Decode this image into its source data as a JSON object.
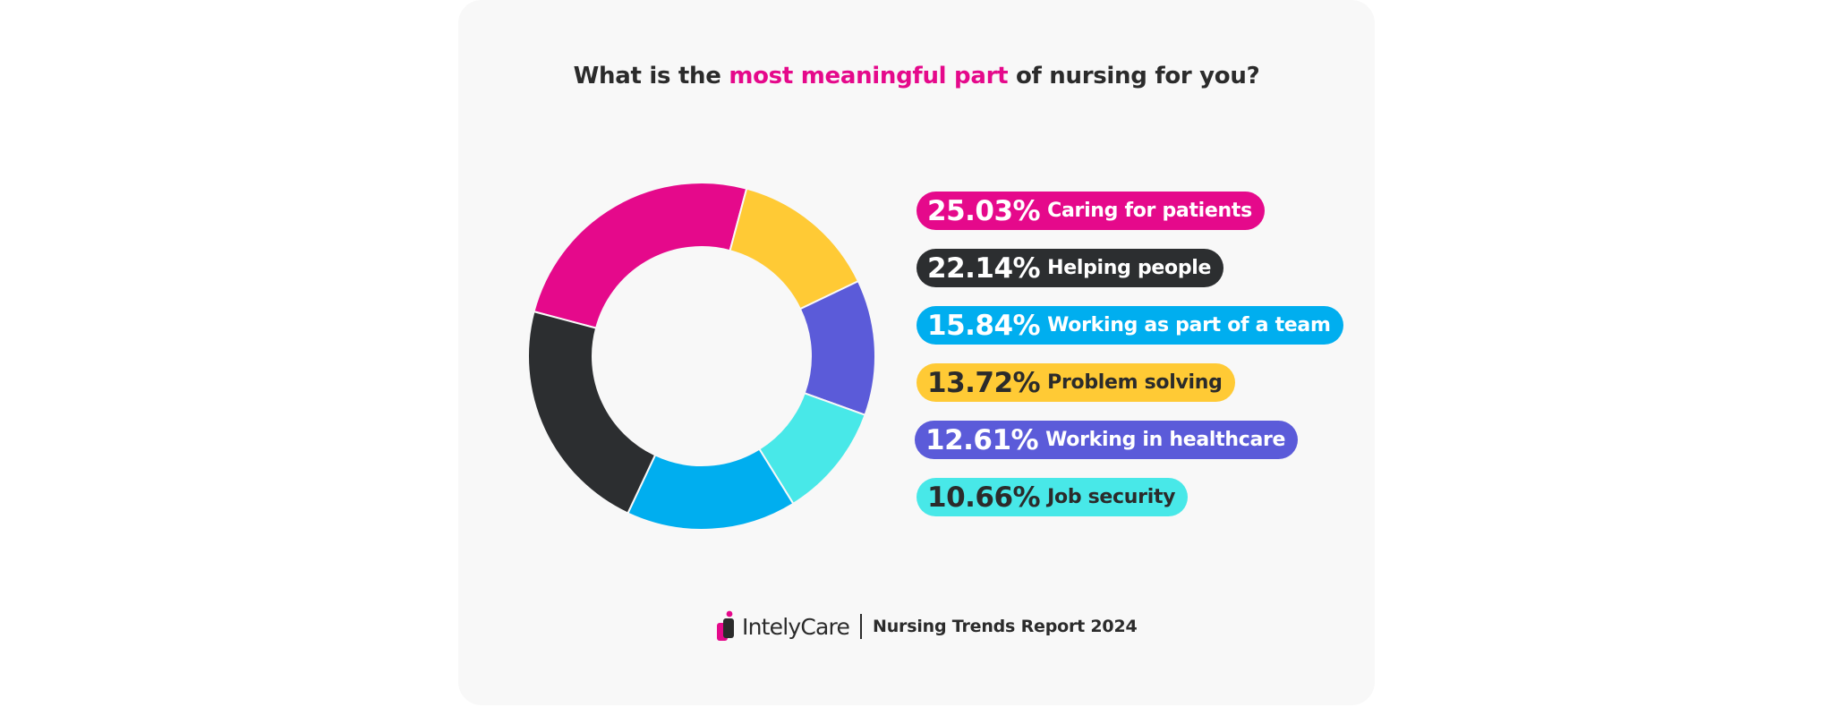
{
  "title": {
    "before": "What is the ",
    "highlight": "most meaningful part",
    "after": " of nursing for you?"
  },
  "chart_data": {
    "type": "pie",
    "donut": true,
    "slices": [
      {
        "label": "Caring for patients",
        "value": 25.03,
        "value_text": "25.03%",
        "color": "#e5098b",
        "text_color": "#ffffff"
      },
      {
        "label": "Helping people",
        "value": 22.14,
        "value_text": "22.14%",
        "color": "#2c2e30",
        "text_color": "#ffffff"
      },
      {
        "label": "Working as part of a team",
        "value": 15.84,
        "value_text": "15.84%",
        "color": "#00aeef",
        "text_color": "#ffffff"
      },
      {
        "label": "Problem solving",
        "value": 13.72,
        "value_text": "13.72%",
        "color": "#ffca35",
        "text_color": "#2b2b2b"
      },
      {
        "label": "Working in healthcare",
        "value": 12.61,
        "value_text": "12.61%",
        "color": "#5b5bd9",
        "text_color": "#ffffff"
      },
      {
        "label": "Job security",
        "value": 10.66,
        "value_text": "10.66%",
        "color": "#48e8e8",
        "text_color": "#2b2b2b"
      }
    ],
    "ring_order": [
      "Caring for patients",
      "Problem solving",
      "Working in healthcare",
      "Job security",
      "Working as part of a team",
      "Helping people"
    ]
  },
  "footer": {
    "brand": "IntelyCare",
    "report": "Nursing Trends Report 2024"
  }
}
